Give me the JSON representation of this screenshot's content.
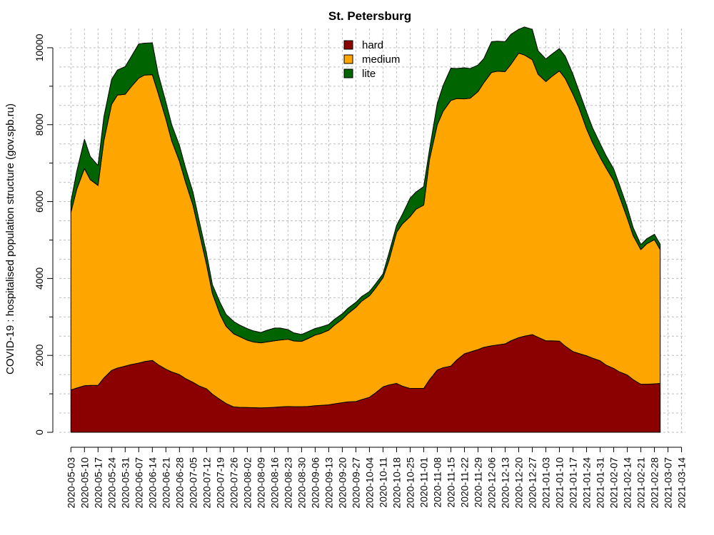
{
  "chart_data": {
    "type": "area",
    "title": "St. Petersburg",
    "ylabel": "COVID-19 : hospitalised population structure (gov.spb.ru)",
    "xlabel": "",
    "ylim": [
      0,
      10500
    ],
    "yticks": [
      "0",
      "2000",
      "4000",
      "6000",
      "8000",
      "10000"
    ],
    "grid": true,
    "stacked": true,
    "legend_position": "top-center",
    "x": [
      "2020-05-03",
      "2020-05-06",
      "2020-05-10",
      "2020-05-13",
      "2020-05-17",
      "2020-05-20",
      "2020-05-24",
      "2020-05-27",
      "2020-05-31",
      "2020-06-03",
      "2020-06-07",
      "2020-06-10",
      "2020-06-14",
      "2020-06-17",
      "2020-06-21",
      "2020-06-24",
      "2020-06-28",
      "2020-07-01",
      "2020-07-05",
      "2020-07-08",
      "2020-07-12",
      "2020-07-15",
      "2020-07-19",
      "2020-07-22",
      "2020-07-26",
      "2020-07-29",
      "2020-08-02",
      "2020-08-05",
      "2020-08-09",
      "2020-08-12",
      "2020-08-16",
      "2020-08-19",
      "2020-08-23",
      "2020-08-26",
      "2020-08-30",
      "2020-09-02",
      "2020-09-06",
      "2020-09-09",
      "2020-09-13",
      "2020-09-16",
      "2020-09-20",
      "2020-09-23",
      "2020-09-27",
      "2020-09-30",
      "2020-10-04",
      "2020-10-07",
      "2020-10-11",
      "2020-10-14",
      "2020-10-18",
      "2020-10-21",
      "2020-10-25",
      "2020-10-28",
      "2020-11-01",
      "2020-11-04",
      "2020-11-08",
      "2020-11-11",
      "2020-11-15",
      "2020-11-18",
      "2020-11-22",
      "2020-11-25",
      "2020-11-29",
      "2020-12-02",
      "2020-12-06",
      "2020-12-09",
      "2020-12-13",
      "2020-12-16",
      "2020-12-20",
      "2020-12-23",
      "2020-12-27",
      "2020-12-30",
      "2021-01-03",
      "2021-01-06",
      "2021-01-10",
      "2021-01-13",
      "2021-01-17",
      "2021-01-20",
      "2021-01-24",
      "2021-01-27",
      "2021-01-31",
      "2021-02-03",
      "2021-02-07",
      "2021-02-10",
      "2021-02-14",
      "2021-02-17",
      "2021-02-21",
      "2021-02-24",
      "2021-02-28",
      "2021-03-03"
    ],
    "xtick_labels": [
      "2020-05-03",
      "2020-05-10",
      "2020-05-17",
      "2020-05-24",
      "2020-05-31",
      "2020-06-07",
      "2020-06-14",
      "2020-06-21",
      "2020-06-28",
      "2020-07-05",
      "2020-07-12",
      "2020-07-19",
      "2020-07-26",
      "2020-08-02",
      "2020-08-09",
      "2020-08-16",
      "2020-08-23",
      "2020-08-30",
      "2020-09-06",
      "2020-09-13",
      "2020-09-20",
      "2020-09-27",
      "2020-10-04",
      "2020-10-11",
      "2020-10-18",
      "2020-10-25",
      "2020-11-01",
      "2020-11-08",
      "2020-11-15",
      "2020-11-22",
      "2020-11-29",
      "2020-12-06",
      "2020-12-13",
      "2020-12-20",
      "2020-12-27",
      "2021-01-03",
      "2021-01-10",
      "2021-01-17",
      "2021-01-24",
      "2021-01-31",
      "2021-02-07",
      "2021-02-14",
      "2021-02-21",
      "2021-02-28",
      "2021-03-07",
      "2021-03-14"
    ],
    "series": [
      {
        "name": "hard",
        "color": "#8b0000",
        "values": [
          1100,
          1150,
          1210,
          1220,
          1220,
          1410,
          1610,
          1670,
          1720,
          1760,
          1800,
          1840,
          1870,
          1760,
          1640,
          1570,
          1500,
          1400,
          1300,
          1210,
          1130,
          990,
          850,
          750,
          660,
          650,
          645,
          640,
          635,
          640,
          650,
          660,
          670,
          665,
          665,
          670,
          690,
          700,
          715,
          740,
          770,
          790,
          800,
          850,
          910,
          1020,
          1180,
          1230,
          1270,
          1200,
          1140,
          1140,
          1140,
          1370,
          1620,
          1680,
          1720,
          1880,
          2040,
          2090,
          2150,
          2210,
          2250,
          2270,
          2300,
          2380,
          2460,
          2500,
          2540,
          2470,
          2380,
          2380,
          2370,
          2240,
          2100,
          2050,
          1990,
          1930,
          1860,
          1750,
          1660,
          1570,
          1490,
          1370,
          1250,
          1250,
          1260,
          1270
        ]
      },
      {
        "name": "medium",
        "color": "#ffa500",
        "values": [
          4620,
          5170,
          5650,
          5350,
          5200,
          6170,
          6920,
          7100,
          7070,
          7220,
          7410,
          7450,
          7430,
          7060,
          6510,
          6010,
          5550,
          5130,
          4600,
          4030,
          3230,
          2620,
          2210,
          2010,
          1900,
          1840,
          1750,
          1710,
          1690,
          1710,
          1730,
          1740,
          1750,
          1710,
          1700,
          1760,
          1840,
          1870,
          1940,
          2050,
          2170,
          2300,
          2450,
          2560,
          2640,
          2720,
          2840,
          3230,
          3930,
          4220,
          4470,
          4660,
          4770,
          5730,
          6380,
          6670,
          6910,
          6800,
          6630,
          6600,
          6710,
          6880,
          7110,
          7120,
          7080,
          7190,
          7400,
          7310,
          7150,
          6840,
          6740,
          6870,
          7030,
          6960,
          6690,
          6400,
          5900,
          5610,
          5290,
          5130,
          4880,
          4560,
          4080,
          3750,
          3500,
          3650,
          3750,
          3480
        ]
      },
      {
        "name": "lite",
        "color": "#006400",
        "values": [
          280,
          460,
          760,
          600,
          520,
          620,
          650,
          650,
          720,
          780,
          890,
          830,
          830,
          510,
          440,
          420,
          410,
          370,
          340,
          300,
          280,
          230,
          310,
          310,
          320,
          300,
          300,
          290,
          270,
          300,
          330,
          310,
          250,
          210,
          180,
          180,
          170,
          170,
          150,
          150,
          140,
          140,
          130,
          120,
          110,
          110,
          100,
          190,
          180,
          250,
          480,
          450,
          480,
          260,
          550,
          670,
          840,
          780,
          810,
          770,
          690,
          630,
          800,
          780,
          780,
          780,
          620,
          730,
          790,
          610,
          590,
          580,
          580,
          580,
          520,
          440,
          440,
          390,
          360,
          320,
          310,
          300,
          280,
          210,
          130,
          130,
          140,
          140
        ]
      }
    ]
  }
}
